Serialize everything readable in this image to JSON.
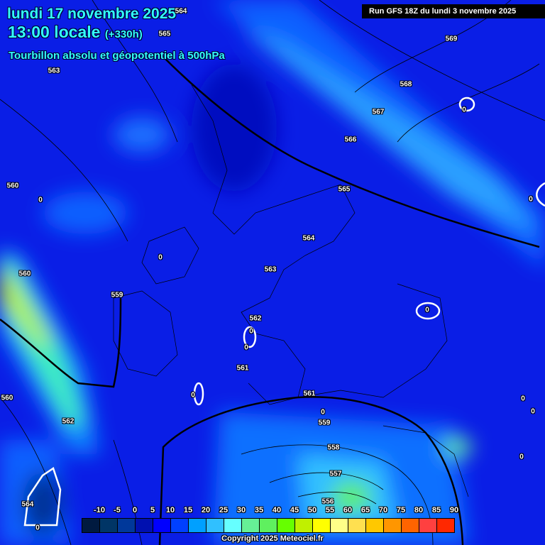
{
  "header": {
    "date": "lundi 17 novembre 2025",
    "time": "13:00 locale",
    "lead": "(+330h)",
    "field": "Tourbillon absolu et géopotentiel à 500hPa",
    "run": "Run GFS 18Z du lundi 3 novembre 2025"
  },
  "contour_labels": [
    "564",
    "565",
    "563",
    "569",
    "568",
    "567",
    "566",
    "565",
    "564",
    "563",
    "562",
    "561",
    "560",
    "560",
    "559",
    "560",
    "562",
    "561",
    "559",
    "558",
    "557",
    "556",
    "564"
  ],
  "vorticity_zero_labels": [
    "0",
    "0",
    "0",
    "0",
    "0",
    "0",
    "0",
    "0",
    "0",
    "0",
    "0",
    "0",
    "0"
  ],
  "legend": {
    "ticks": [
      "-10",
      "-5",
      "0",
      "5",
      "10",
      "15",
      "20",
      "25",
      "30",
      "35",
      "40",
      "45",
      "50",
      "55",
      "60",
      "65",
      "70",
      "75",
      "80",
      "85",
      "90"
    ],
    "colors": [
      "#001a40",
      "#003566",
      "#00389a",
      "#0010b0",
      "#0000ff",
      "#0040ff",
      "#00a0ff",
      "#30c0ff",
      "#66ffff",
      "#66f096",
      "#5ff05f",
      "#66ff00",
      "#c0f000",
      "#ffff00",
      "#ffff88",
      "#ffe050",
      "#ffc800",
      "#ff9600",
      "#ff6400",
      "#ff4040",
      "#ff2800"
    ]
  },
  "copyright": "Copyright 2025 Meteociel.fr"
}
